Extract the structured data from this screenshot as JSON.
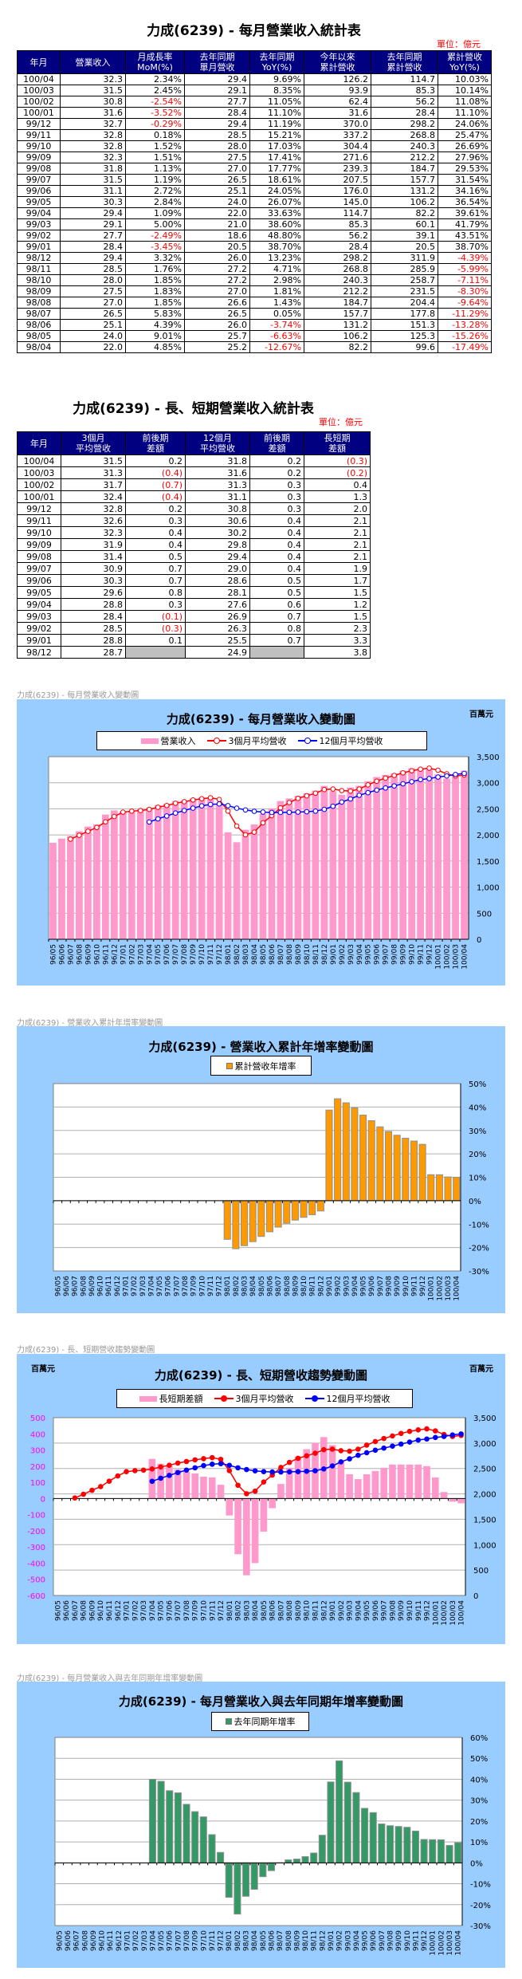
{
  "monthly_table": {
    "title": "力成(6239) - 每月營業收入統計表",
    "unit": "單位：億元",
    "headers": [
      "年月",
      "營業收入",
      "月成長率\nMoM(%)",
      "去年同期\n單月營收",
      "去年同期\nYoY(%)",
      "今年以來\n累計營收",
      "去年同期\n累計營收",
      "累計營收\nYoY(%)"
    ],
    "rows": [
      [
        "100/04",
        "32.3",
        "2.34%",
        "29.4",
        "9.69%",
        "126.2",
        "114.7",
        "10.03%"
      ],
      [
        "100/03",
        "31.5",
        "2.45%",
        "29.1",
        "8.35%",
        "93.9",
        "85.3",
        "10.14%"
      ],
      [
        "100/02",
        "30.8",
        "-2.54%",
        "27.7",
        "11.05%",
        "62.4",
        "56.2",
        "11.08%"
      ],
      [
        "100/01",
        "31.6",
        "-3.52%",
        "28.4",
        "11.10%",
        "31.6",
        "28.4",
        "11.10%"
      ],
      [
        "99/12",
        "32.7",
        "-0.29%",
        "29.4",
        "11.19%",
        "370.0",
        "298.2",
        "24.06%"
      ],
      [
        "99/11",
        "32.8",
        "0.18%",
        "28.5",
        "15.21%",
        "337.2",
        "268.8",
        "25.47%"
      ],
      [
        "99/10",
        "32.8",
        "1.52%",
        "28.0",
        "17.03%",
        "304.4",
        "240.3",
        "26.69%"
      ],
      [
        "99/09",
        "32.3",
        "1.51%",
        "27.5",
        "17.41%",
        "271.6",
        "212.2",
        "27.96%"
      ],
      [
        "99/08",
        "31.8",
        "1.13%",
        "27.0",
        "17.77%",
        "239.3",
        "184.7",
        "29.53%"
      ],
      [
        "99/07",
        "31.5",
        "1.19%",
        "26.5",
        "18.61%",
        "207.5",
        "157.7",
        "31.54%"
      ],
      [
        "99/06",
        "31.1",
        "2.72%",
        "25.1",
        "24.05%",
        "176.0",
        "131.2",
        "34.16%"
      ],
      [
        "99/05",
        "30.3",
        "2.84%",
        "24.0",
        "26.07%",
        "145.0",
        "106.2",
        "36.54%"
      ],
      [
        "99/04",
        "29.4",
        "1.09%",
        "22.0",
        "33.63%",
        "114.7",
        "82.2",
        "39.61%"
      ],
      [
        "99/03",
        "29.1",
        "5.00%",
        "21.0",
        "38.60%",
        "85.3",
        "60.1",
        "41.79%"
      ],
      [
        "99/02",
        "27.7",
        "-2.49%",
        "18.6",
        "48.80%",
        "56.2",
        "39.1",
        "43.51%"
      ],
      [
        "99/01",
        "28.4",
        "-3.45%",
        "20.5",
        "38.70%",
        "28.4",
        "20.5",
        "38.70%"
      ],
      [
        "98/12",
        "29.4",
        "3.32%",
        "26.0",
        "13.23%",
        "298.2",
        "311.9",
        "-4.39%"
      ],
      [
        "98/11",
        "28.5",
        "1.76%",
        "27.2",
        "4.71%",
        "268.8",
        "285.9",
        "-5.99%"
      ],
      [
        "98/10",
        "28.0",
        "1.85%",
        "27.2",
        "2.98%",
        "240.3",
        "258.7",
        "-7.11%"
      ],
      [
        "98/09",
        "27.5",
        "1.83%",
        "27.0",
        "1.81%",
        "212.2",
        "231.5",
        "-8.30%"
      ],
      [
        "98/08",
        "27.0",
        "1.85%",
        "26.6",
        "1.43%",
        "184.7",
        "204.4",
        "-9.64%"
      ],
      [
        "98/07",
        "26.5",
        "5.83%",
        "26.5",
        "0.05%",
        "157.7",
        "177.8",
        "-11.29%"
      ],
      [
        "98/06",
        "25.1",
        "4.39%",
        "26.0",
        "-3.74%",
        "131.2",
        "151.3",
        "-13.28%"
      ],
      [
        "98/05",
        "24.0",
        "9.01%",
        "25.7",
        "-6.63%",
        "106.2",
        "125.3",
        "-15.26%"
      ],
      [
        "98/04",
        "22.0",
        "4.85%",
        "25.2",
        "-12.67%",
        "82.2",
        "99.6",
        "-17.49%"
      ]
    ]
  },
  "trend_table": {
    "title": "力成(6239) - 長、短期營業收入統計表",
    "unit": "單位：億元",
    "headers": [
      "年月",
      "3個月\n平均營收",
      "前後期\n差額",
      "12個月\n平均營收",
      "前後期\n差額",
      "長短期\n差額"
    ],
    "rows": [
      [
        "100/04",
        "31.5",
        "0.2",
        "31.8",
        "0.2",
        "(0.3)"
      ],
      [
        "100/03",
        "31.3",
        "(0.4)",
        "31.6",
        "0.2",
        "(0.2)"
      ],
      [
        "100/02",
        "31.7",
        "(0.7)",
        "31.3",
        "0.3",
        "0.4"
      ],
      [
        "100/01",
        "32.4",
        "(0.4)",
        "31.1",
        "0.3",
        "1.3"
      ],
      [
        "99/12",
        "32.8",
        "0.2",
        "30.8",
        "0.3",
        "2.0"
      ],
      [
        "99/11",
        "32.6",
        "0.3",
        "30.6",
        "0.4",
        "2.1"
      ],
      [
        "99/10",
        "32.3",
        "0.4",
        "30.2",
        "0.4",
        "2.1"
      ],
      [
        "99/09",
        "31.9",
        "0.4",
        "29.8",
        "0.4",
        "2.1"
      ],
      [
        "99/08",
        "31.4",
        "0.5",
        "29.4",
        "0.4",
        "2.1"
      ],
      [
        "99/07",
        "30.9",
        "0.7",
        "29.0",
        "0.4",
        "1.9"
      ],
      [
        "99/06",
        "30.3",
        "0.7",
        "28.6",
        "0.5",
        "1.7"
      ],
      [
        "99/05",
        "29.6",
        "0.8",
        "28.1",
        "0.5",
        "1.5"
      ],
      [
        "99/04",
        "28.8",
        "0.3",
        "27.6",
        "0.6",
        "1.2"
      ],
      [
        "99/03",
        "28.4",
        "(0.1)",
        "26.9",
        "0.7",
        "1.5"
      ],
      [
        "99/02",
        "28.5",
        "(0.3)",
        "26.3",
        "0.8",
        "2.3"
      ],
      [
        "99/01",
        "28.8",
        "0.1",
        "25.5",
        "0.7",
        "3.3"
      ],
      [
        "98/12",
        "28.7",
        "",
        "24.9",
        "",
        "3.8"
      ]
    ]
  },
  "colors": {
    "header_bg": "#000080",
    "chart_bg": "#99ccff",
    "revenue_bar": "#ff99cc",
    "avg3_line": "#ff0000",
    "avg12_line": "#0000ff",
    "cum_yoy_bar": "#ff9900",
    "yoy_bar": "#339966",
    "negative_text": "#ff0000"
  },
  "chart_data": [
    {
      "type": "bar+line",
      "caption": "力成(6239) - 每月營業收入變動圖",
      "title": "力成(6239) - 每月營業收入變動圖",
      "unit": "百萬元",
      "legend_position": "top",
      "grid": true,
      "ylim": [
        0,
        3500
      ],
      "yticks": [
        "3,500",
        "3,000",
        "2,500",
        "2,000",
        "1,500",
        "1,000",
        "500",
        "0"
      ],
      "categories": [
        "96/05",
        "96/06",
        "96/07",
        "96/08",
        "96/09",
        "96/10",
        "96/11",
        "96/12",
        "97/01",
        "97/02",
        "97/03",
        "97/04",
        "97/05",
        "97/06",
        "97/07",
        "97/08",
        "97/09",
        "97/10",
        "97/11",
        "97/12",
        "98/01",
        "98/02",
        "98/03",
        "98/04",
        "98/05",
        "98/06",
        "98/07",
        "98/08",
        "98/09",
        "98/10",
        "98/11",
        "98/12",
        "99/01",
        "99/02",
        "99/03",
        "99/04",
        "99/05",
        "99/06",
        "99/07",
        "99/08",
        "99/09",
        "99/10",
        "99/11",
        "99/12",
        "100/01",
        "100/02",
        "100/03",
        "100/04"
      ],
      "series": [
        {
          "name": "營業收入",
          "kind": "bar",
          "values": [
            1850,
            1930,
            1980,
            2070,
            2160,
            2200,
            2390,
            2470,
            2450,
            2450,
            2500,
            2520,
            2570,
            2600,
            2650,
            2660,
            2700,
            2720,
            2720,
            2600,
            2050,
            1860,
            2100,
            2200,
            2400,
            2510,
            2650,
            2700,
            2750,
            2800,
            2850,
            2940,
            2840,
            2770,
            2910,
            2940,
            3030,
            3110,
            3150,
            3180,
            3230,
            3280,
            3280,
            3270,
            3160,
            3080,
            3150,
            3230
          ]
        },
        {
          "name": "3個月平均營收",
          "kind": "line",
          "values": [
            null,
            null,
            1920,
            1993,
            2070,
            2143,
            2250,
            2353,
            2437,
            2457,
            2467,
            2490,
            2530,
            2563,
            2607,
            2637,
            2670,
            2693,
            2713,
            2680,
            2457,
            2170,
            2003,
            2053,
            2233,
            2370,
            2520,
            2620,
            2700,
            2750,
            2800,
            2870,
            2880,
            2850,
            2840,
            2880,
            2960,
            3030,
            3090,
            3140,
            3190,
            3230,
            3260,
            3280,
            3240,
            3170,
            3130,
            3150
          ]
        },
        {
          "name": "12個月平均營收",
          "kind": "line",
          "values": [
            null,
            null,
            null,
            null,
            null,
            null,
            null,
            null,
            null,
            null,
            null,
            2248,
            2308,
            2363,
            2419,
            2468,
            2513,
            2557,
            2584,
            2595,
            2562,
            2513,
            2479,
            2453,
            2438,
            2431,
            2431,
            2434,
            2438,
            2445,
            2456,
            2490,
            2550,
            2630,
            2690,
            2760,
            2810,
            2860,
            2900,
            2940,
            2980,
            3020,
            3060,
            3080,
            3110,
            3130,
            3160,
            3180
          ]
        }
      ]
    },
    {
      "type": "bar",
      "caption": "力成(6239) -  營業收入累計年增率變動圖",
      "title": "力成(6239) -  營業收入累計年增率變動圖",
      "legend_position": "top",
      "grid": true,
      "ylim": [
        -30,
        50
      ],
      "yticks": [
        "50%",
        "40%",
        "30%",
        "20%",
        "10%",
        "0%",
        "-10%",
        "-20%",
        "-30%"
      ],
      "series": [
        {
          "name": "累計營收年增率",
          "kind": "bar",
          "values": [
            null,
            null,
            null,
            null,
            null,
            null,
            null,
            null,
            null,
            null,
            null,
            null,
            null,
            null,
            null,
            null,
            null,
            null,
            null,
            null,
            -16.5,
            -20.5,
            -19.2,
            -17.49,
            -15.26,
            -13.28,
            -11.29,
            -9.64,
            -8.3,
            -7.11,
            -5.99,
            -4.39,
            38.7,
            43.51,
            41.79,
            39.61,
            36.54,
            34.16,
            31.54,
            29.53,
            27.96,
            26.69,
            25.47,
            24.06,
            11.1,
            11.08,
            10.14,
            10.03
          ]
        }
      ]
    },
    {
      "type": "bar+line",
      "caption": "力成(6239) -  長、短期營收趨勢變動圖",
      "title": "力成(6239) -  長、短期營收趨勢變動圖",
      "unit_left": "百萬元",
      "unit_right": "百萬元",
      "legend_position": "top",
      "grid": true,
      "ylim_left": [
        -600,
        500
      ],
      "yticks_left": [
        "500",
        "400",
        "300",
        "200",
        "100",
        "0",
        "-100",
        "-200",
        "-300",
        "-400",
        "-500",
        "-600"
      ],
      "ylim_right": [
        0,
        3500
      ],
      "yticks_right": [
        "3,500",
        "3,000",
        "2,500",
        "2,000",
        "1,500",
        "1,000",
        "500",
        "0"
      ],
      "series": [
        {
          "name": "長短期差額",
          "kind": "bar",
          "axis": "left",
          "values": [
            null,
            null,
            null,
            null,
            null,
            null,
            null,
            null,
            null,
            null,
            null,
            245,
            215,
            200,
            180,
            165,
            155,
            135,
            130,
            85,
            -105,
            -345,
            -475,
            -400,
            -205,
            -60,
            90,
            190,
            260,
            305,
            345,
            380,
            330,
            230,
            150,
            120,
            150,
            170,
            190,
            210,
            210,
            210,
            210,
            200,
            130,
            40,
            -20,
            -30
          ]
        },
        {
          "name": "3個月平均營收",
          "kind": "line",
          "axis": "right",
          "ref": "3個月平均營收"
        },
        {
          "name": "12個月平均營收",
          "kind": "line",
          "axis": "right",
          "ref": "12個月平均營收"
        }
      ]
    },
    {
      "type": "bar",
      "caption": "力成(6239) -  每月營業收入與去年同期年增率變動圖",
      "title": "力成(6239) -  每月營業收入與去年同期年增率變動圖",
      "legend_position": "top",
      "grid": true,
      "ylim": [
        -30,
        60
      ],
      "yticks": [
        "60%",
        "50%",
        "40%",
        "30%",
        "20%",
        "10%",
        "0%",
        "-10%",
        "-20%",
        "-30%"
      ],
      "series": [
        {
          "name": "去年同期年增率",
          "kind": "bar",
          "values": [
            null,
            null,
            null,
            null,
            null,
            null,
            null,
            null,
            null,
            null,
            null,
            40,
            39,
            34.5,
            33.5,
            28,
            24.5,
            22,
            13.5,
            5,
            -16.5,
            -24.5,
            -16,
            -12.67,
            -6.63,
            -3.74,
            0.05,
            1.43,
            1.81,
            2.98,
            4.71,
            13.23,
            38.7,
            48.8,
            38.6,
            33.63,
            26.07,
            24.05,
            18.61,
            17.77,
            17.41,
            17.03,
            15.21,
            11.19,
            11.1,
            11.05,
            8.35,
            9.69
          ]
        }
      ]
    }
  ]
}
